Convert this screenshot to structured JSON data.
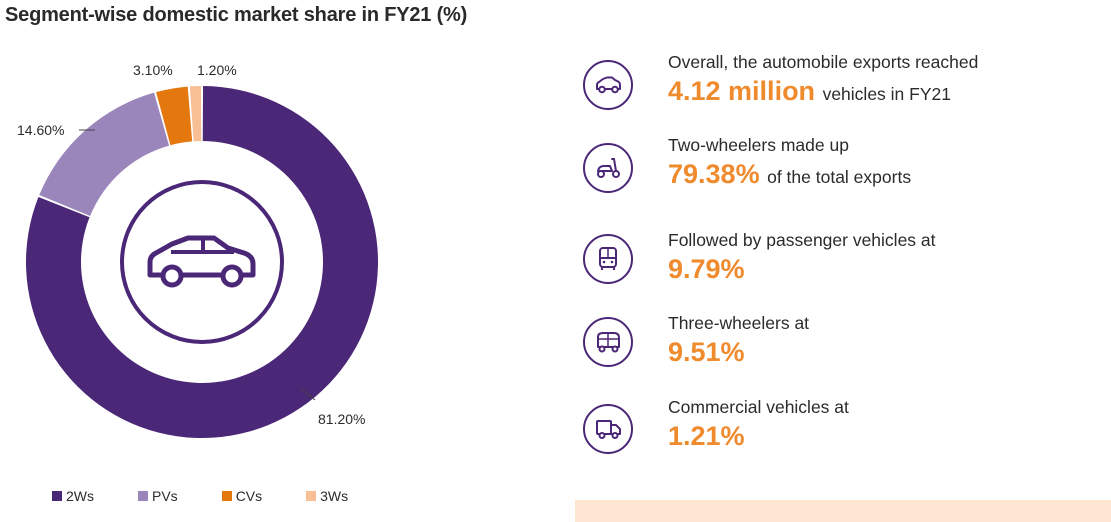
{
  "title": "Segment-wise domestic market share in FY21 (%)",
  "chart_data": {
    "type": "pie",
    "variant": "donut",
    "title": "Segment-wise domestic market share in FY21 (%)",
    "categories": [
      "2Ws",
      "PVs",
      "CVs",
      "3Ws"
    ],
    "values": [
      81.2,
      14.6,
      3.1,
      1.2
    ],
    "labels": [
      "81.20%",
      "14.60%",
      "3.10%",
      "1.20%"
    ],
    "colors": [
      "#4b2777",
      "#9b86bb",
      "#e5770f",
      "#f8bf95"
    ],
    "legend_position": "bottom",
    "center_icon": "car-icon"
  },
  "legend": [
    {
      "label": "2Ws",
      "color": "#4b2777"
    },
    {
      "label": "PVs",
      "color": "#9b86bb"
    },
    {
      "label": "CVs",
      "color": "#e5770f"
    },
    {
      "label": "3Ws",
      "color": "#f8bf95"
    }
  ],
  "stats": [
    {
      "icon": "car-icon",
      "line1": "Overall, the automobile exports reached",
      "value": "4.12 million",
      "suffix": "vehicles in FY21"
    },
    {
      "icon": "scooter-icon",
      "line1": "Two-wheelers made up",
      "value": "79.38%",
      "suffix": "of the total exports"
    },
    {
      "icon": "bus-icon",
      "line1": "Followed by passenger vehicles at",
      "value": "9.79%",
      "suffix": ""
    },
    {
      "icon": "auto-rickshaw-icon",
      "line1": "Three-wheelers at",
      "value": "9.51%",
      "suffix": ""
    },
    {
      "icon": "truck-icon",
      "line1": "Commercial vehicles at",
      "value": "1.21%",
      "suffix": ""
    }
  ],
  "colors": {
    "accent": "#ef8a2d",
    "brand": "#4b2777",
    "panel": "#fde7d3"
  }
}
